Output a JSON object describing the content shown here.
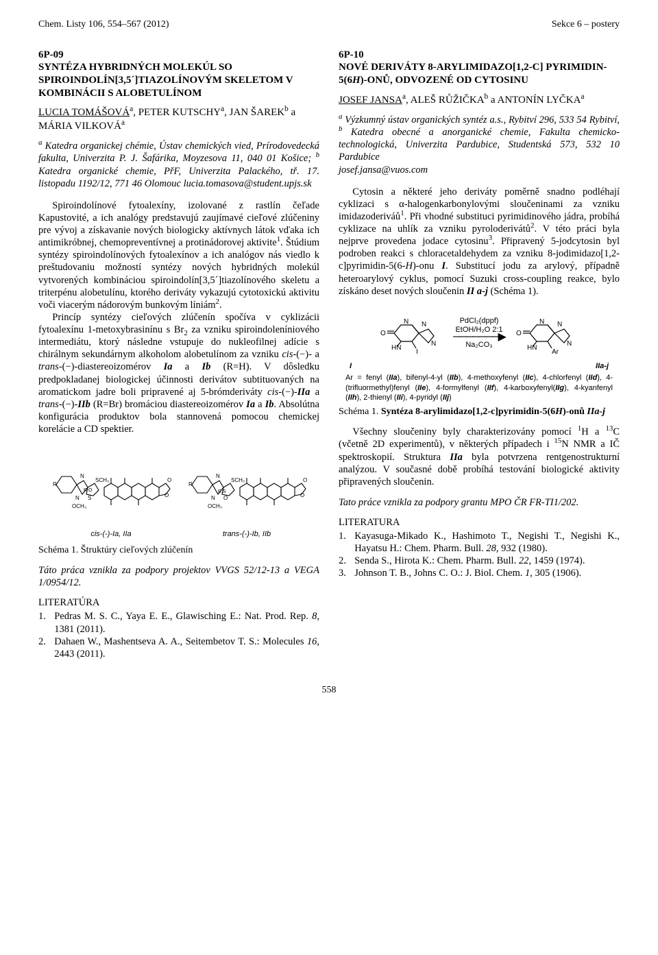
{
  "page": {
    "header_left": "Chem. Listy 106, 554–567 (2012)",
    "header_right": "Sekce 6 – postery",
    "page_number": "558"
  },
  "left": {
    "id": "6P-09",
    "title": "SYNTÉZA HYBRIDNÝCH MOLEKÚL SO SPIROINDOLÍN[3,5´]TIAZOLÍNOVÝM SKELETOM V KOMBINÁCII S ALOBETULÍNOM",
    "authors_html": "<u>LUCIA TOMÁŠOVÁ</u><sup>a</sup>, PETER KUTSCHY<sup>a</sup>, JAN ŠAREK<sup>b</sup> a MÁRIA VILKOVÁ<sup>a</sup>",
    "affil_html": "<sup>a</sup> Katedra organickej chémie, Ústav chemických vied, Prírodovedecká fakulta, Univerzita P. J. Šafárika, Moyzesova 11, 040 01 Košice; <sup>b</sup> Katedra organické chemie, PřF, Univerzita Palackého, tř. 17. listopadu 1192/12, 771 46 Olomouc lucia.tomasova@student.upjs.sk",
    "p1_html": "Spiroindolínové fytoalexíny, izolované z rastlín čeľade Kapustovité, a ich analógy predstavujú zaujímavé cieľové zlúčeniny pre vývoj a získavanie nových biologicky aktívnych látok vďaka ich antimikróbnej, chemopreventívnej a protinádorovej aktivite<sup>1</sup>. Štúdium syntézy spiroindolínových fytoalexínov a ich analógov nás viedlo k preštudovaniu možností syntézy nových hybridných molekúl vytvorených kombináciou spiroindolín[3,5´]tiazolínového skeletu a triterpénu alobetulínu, ktorého deriváty vykazujú cytotoxickú aktivitu voči viacerým nádorovým bunkovým líniám<sup>2</sup>.",
    "p2_html": "Princíp syntézy cieľových zlúčenín spočíva v cyklizácii fytoalexínu 1-metoxybrasinínu s Br<sub>2</sub> za vzniku spiroindoleníniového intermediátu, ktorý následne vstupuje do nukleofilnej adície s chirálnym sekundárnym alkoholom alobetulínom za vzniku <i>cis</i>-(−)- a <i>trans</i>-(−)-diastereoizomérov <b><i>Ia</i></b> a <b><i>Ib</i></b> (R=H). V dôsledku predpokladanej biologickej účinnosti derivátov subtituovaných na aromatickom jadre boli pripravené aj 5-brómderiváty <i>cis</i>-(−)-<b><i>IIa</i></b> a <i>trans</i>-(−)-<b><i>IIb</i></b> (R=Br) bromáciou diastereoizomérov <b><i>Ia</i></b> a <b><i>Ib</i></b>. Absolútna konfigurácia produktov bola stannovená pomocou chemickej korelácie a CD spektier.",
    "struct_label_a": "cis-(-)-Ia, IIa",
    "struct_label_b": "trans-(-)-Ib, IIb",
    "scheme_caption": "Schéma 1. Štruktúry cieľových zlúčenín",
    "ack": "Táto práca vznikla za podpory projektov VVGS 52/12-13 a VEGA 1/0954/12.",
    "refs_head": "LITERATÚRA",
    "ref1_html": "Pedras M. S. C., Yaya E. E., Glawisching E.: Nat. Prod. Rep. <i>8</i>, 1381 (2011).",
    "ref2_html": "Dahaen W., Mashentseva A. A., Seitembetov T. S.: Molecules <i>16</i>, 2443 (2011)."
  },
  "right": {
    "id": "6P-10",
    "title_html": "NOVÉ DERIVÁTY 8-ARYLIMIDAZO[1,2-c] PYRIMIDIN-5(6<i>H</i>)-ONŮ, ODVOZENÉ OD CYTOSINU",
    "authors_html": "<u>JOSEF JANSA</u><sup>a</sup>, ALEŠ RŮŽIČKA<sup>b</sup> a ANTONÍN LYČKA<sup>a</sup>",
    "affil_html": "<sup>a</sup> Výzkumný ústav organických syntéz a.s., Rybitví 296, 533 54 Rybitví, <sup>b</sup> Katedra obecné a anorganické chemie, Fakulta chemicko-technologická, Univerzita Pardubice, Studentská 573, 532 10 Pardubice<br>josef.jansa@vuos.com",
    "p1_html": "Cytosin a některé jeho deriváty poměrně snadno podléhají cyklizaci s α-halogenkarbonylovými sloučeninami za vzniku imidazoderiváů<sup>1</sup>. Při vhodné substituci pyrimidinového jádra, probíhá cyklizace na uhlík za vzniku pyroloderivátů<sup>2</sup>. V této práci byla nejprve provedena jodace cytosinu<sup>3</sup>. Připravený 5-jodcytosin byl podroben reakci s chloracetaldehydem za vzniku 8-jodimidazo[1,2-c]pyrimidin-5(6-<i>H</i>)-onu <b><i>I</i></b>. Substitucí jodu za arylový, případně heteroarylový cyklus, pomocí Suzuki cross-coupling reakce, bylo získáno deset nových sloučenin <b><i>II a-j</i></b> (Schéma 1).",
    "rxn": {
      "reag1": "PdCl₂(dppf)",
      "reag2": "EtOH/H₂O 2:1",
      "reag3": "Na₂CO₃",
      "lab_I": "I",
      "lab_II": "IIa-j",
      "legend_html": "Ar = fenyl (<b><i>IIa</i></b>), bifenyl-4-yl (<b><i>IIb</i></b>), 4-methoxyfenyl (<b><i>IIc</i></b>), 4-chlorfenyl (<b><i>IId</i></b>), 4-(trifluormethyl)fenyl (<b><i>IIe</i></b>), 4-formylfenyl (<b><i>IIf</i></b>), 4-karboxyfenyl(<b><i>IIg</i></b>), 4-kyanfenyl (<b><i>IIh</i></b>), 2-thienyl (<b><i>IIi</i></b>), 4-pyridyl (<b><i>IIj</i></b>)"
    },
    "scheme_caption_html": "Schéma 1. <b>Syntéza 8-arylimidazo[1,2-c]pyrimidin-5(6<i>H</i>)-onů <i>IIa-j</i></b>",
    "p3_html": "Všechny sloučeniny byly charakterizovány pomocí <sup>1</sup>H a <sup>13</sup>C (včetně 2D experimentů), v některých případech i <sup>15</sup>N NMR a IČ spektroskopií. Struktura <b><i>IIa</i></b> byla potvrzena rentgenostrukturní analýzou. V současné době probíhá testování biologické aktivity připravených sloučenin.",
    "ack": "Tato práce vznikla za podpory grantu MPO ČR FR-TI1/202.",
    "refs_head": "LITERATURA",
    "ref1_html": "Kayasuga-Mikado K., Hashimoto T., Negishi T., Negishi K., Hayatsu H.: Chem. Pharm. Bull. <i>28</i>, 932 (1980).",
    "ref2_html": "Senda S., Hirota K.: Chem. Pharm. Bull. <i>22</i>, 1459 (1974).",
    "ref3_html": "Johnson T. B., Johns C. O.: J. Biol. Chem. <i>1</i>, 305 (1906)."
  },
  "svg": {
    "ring_stroke": "#000000",
    "ring_stroke_width": 1.1
  }
}
